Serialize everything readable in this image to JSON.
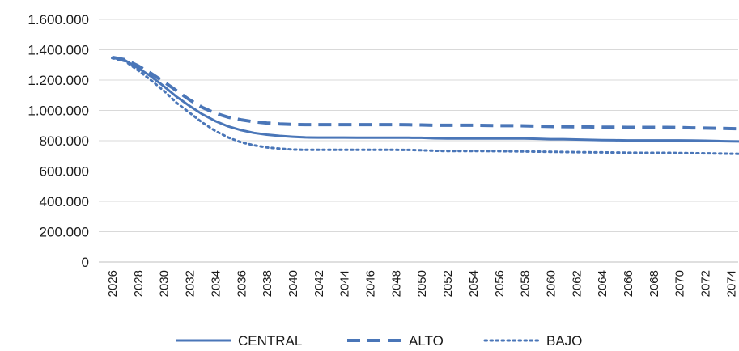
{
  "chart_data": {
    "type": "line",
    "title": "",
    "xlabel": "",
    "ylabel": "",
    "ylim": [
      0,
      1600000
    ],
    "yticks": [
      0,
      200000,
      400000,
      600000,
      800000,
      1000000,
      1200000,
      1400000,
      1600000
    ],
    "ytick_labels": [
      "0",
      "200.000",
      "400.000",
      "600.000",
      "800.000",
      "1.000.000",
      "1.200.000",
      "1.400.000",
      "1.600.000"
    ],
    "x": [
      2026,
      2027,
      2028,
      2029,
      2030,
      2031,
      2032,
      2033,
      2034,
      2035,
      2036,
      2037,
      2038,
      2039,
      2040,
      2041,
      2042,
      2043,
      2044,
      2045,
      2046,
      2047,
      2048,
      2049,
      2050,
      2051,
      2052,
      2053,
      2054,
      2055,
      2056,
      2057,
      2058,
      2059,
      2060,
      2061,
      2062,
      2063,
      2064,
      2065,
      2066,
      2067,
      2068,
      2069,
      2070,
      2071,
      2072,
      2073,
      2074,
      2075
    ],
    "xtick_labels": [
      "2026",
      "2028",
      "2030",
      "2032",
      "2034",
      "2036",
      "2038",
      "2040",
      "2042",
      "2044",
      "2046",
      "2048",
      "2050",
      "2052",
      "2054",
      "2056",
      "2058",
      "2060",
      "2062",
      "2064",
      "2066",
      "2068",
      "2070",
      "2072",
      "2074"
    ],
    "grid": true,
    "legend_position": "bottom",
    "color": "#4a76b8",
    "series": [
      {
        "name": "CENTRAL",
        "style": "solid",
        "values": [
          1350000,
          1330000,
          1280000,
          1225000,
          1160000,
          1090000,
          1030000,
          975000,
          930000,
          895000,
          870000,
          852000,
          840000,
          832000,
          826000,
          822000,
          821000,
          821000,
          821000,
          820000,
          820000,
          820000,
          820000,
          820000,
          819000,
          816000,
          815000,
          815000,
          815000,
          815000,
          815000,
          815000,
          815000,
          813000,
          810000,
          810000,
          808000,
          806000,
          804000,
          803000,
          802000,
          802000,
          802000,
          802000,
          802000,
          801000,
          800000,
          798000,
          796000,
          795000
        ]
      },
      {
        "name": "ALTO",
        "style": "dashed",
        "values": [
          1350000,
          1335000,
          1295000,
          1245000,
          1190000,
          1130000,
          1070000,
          1020000,
          982000,
          955000,
          938000,
          925000,
          917000,
          911000,
          907000,
          906000,
          906000,
          906000,
          906000,
          906000,
          906000,
          906000,
          906000,
          905000,
          904000,
          902000,
          902000,
          902000,
          902000,
          901000,
          900000,
          899000,
          898000,
          896000,
          894000,
          893000,
          892000,
          891000,
          889000,
          889000,
          888000,
          888000,
          888000,
          888000,
          887000,
          885000,
          883000,
          882000,
          880000,
          879000
        ]
      },
      {
        "name": "BAJO",
        "style": "dotted",
        "values": [
          1345000,
          1325000,
          1265000,
          1200000,
          1130000,
          1050000,
          985000,
          920000,
          865000,
          822000,
          790000,
          770000,
          756000,
          748000,
          742000,
          740000,
          740000,
          740000,
          740000,
          740000,
          740000,
          740000,
          740000,
          739000,
          737000,
          734000,
          732000,
          732000,
          732000,
          732000,
          731000,
          730000,
          729000,
          728000,
          727000,
          726000,
          725000,
          724000,
          723000,
          722000,
          721000,
          720000,
          720000,
          720000,
          719000,
          718000,
          717000,
          716000,
          714000,
          713000
        ]
      }
    ]
  }
}
